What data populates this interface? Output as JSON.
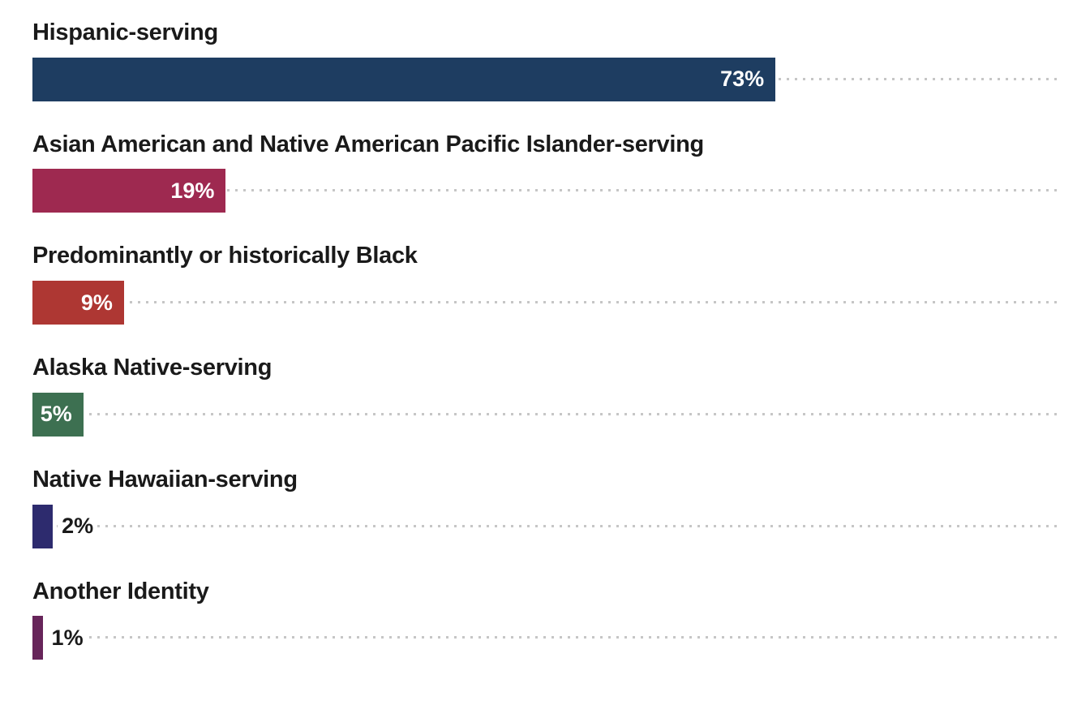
{
  "chart_data": {
    "type": "bar",
    "orientation": "horizontal",
    "title": "",
    "xlabel": "",
    "ylabel": "",
    "xlim": [
      0,
      100
    ],
    "legend": "none",
    "grid": "dotted-leader-lines-per-row",
    "categories": [
      "Hispanic-serving",
      "Asian American and Native American Pacific Islander-serving",
      "Predominantly or historically Black",
      "Alaska Native-serving",
      "Native Hawaiian-serving",
      "Another Identity"
    ],
    "values": [
      73,
      19,
      9,
      5,
      2,
      1
    ],
    "rows": [
      {
        "label": "Hispanic-serving",
        "value": 73,
        "display": "73%",
        "color": "#1E3D61"
      },
      {
        "label": "Asian American and Native American Pacific Islander-serving",
        "value": 19,
        "display": "19%",
        "color": "#9E2950"
      },
      {
        "label": "Predominantly or historically Black",
        "value": 9,
        "display": "9%",
        "color": "#AE3733"
      },
      {
        "label": "Alaska Native-serving",
        "value": 5,
        "display": "5%",
        "color": "#3D7051"
      },
      {
        "label": "Native Hawaiian-serving",
        "value": 2,
        "display": "2%",
        "color": "#2D2B6E"
      },
      {
        "label": "Another Identity",
        "value": 1,
        "display": "1%",
        "color": "#67255A"
      }
    ]
  },
  "colors": {
    "background": "#FFFFFF",
    "category_text": "#1A1A1A",
    "value_text_inside": "#FFFFFF",
    "value_text_outside": "#1A1A1A",
    "leader_dots": "#C6C6C6"
  }
}
